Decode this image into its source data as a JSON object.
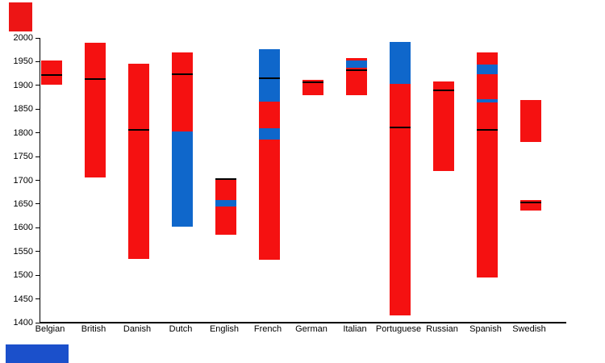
{
  "chart_data": {
    "type": "bar",
    "subtype": "floating-stacked-range-bars",
    "title": "",
    "xlabel": "",
    "ylabel": "",
    "ylim": [
      1400,
      2000
    ],
    "ytick_step": 50,
    "ytick_labels": [
      "2000",
      "1950",
      "1900",
      "1850",
      "1800",
      "1750",
      "1700",
      "1650",
      "1600",
      "1550",
      "1500",
      "1450",
      "1400"
    ],
    "grid": "off",
    "legend": "none",
    "categories": [
      "Belgian",
      "British",
      "Danish",
      "Dutch",
      "English",
      "French",
      "German",
      "Italian",
      "Portuguese",
      "Russian",
      "Spanish",
      "Swedish"
    ],
    "colors": {
      "red": "#f51111",
      "blue": "#0f67cb",
      "marker": "#000000",
      "axis": "#000000"
    },
    "bars": [
      {
        "category": "Belgian",
        "marker": 1922,
        "segments": [
          {
            "from": 1901,
            "to": 1953,
            "color": "red"
          }
        ]
      },
      {
        "category": "British",
        "marker": 1914,
        "segments": [
          {
            "from": 1706,
            "to": 1989,
            "color": "red"
          }
        ]
      },
      {
        "category": "Danish",
        "marker": 1806,
        "segments": [
          {
            "from": 1534,
            "to": 1946,
            "color": "red"
          }
        ]
      },
      {
        "category": "Dutch",
        "marker": 1924,
        "segments": [
          {
            "from": 1603,
            "to": 1802,
            "color": "blue"
          },
          {
            "from": 1802,
            "to": 1970,
            "color": "red"
          }
        ]
      },
      {
        "category": "English",
        "marker": 1703,
        "segments": [
          {
            "from": 1585,
            "to": 1644,
            "color": "red"
          },
          {
            "from": 1644,
            "to": 1658,
            "color": "blue"
          },
          {
            "from": 1658,
            "to": 1705,
            "color": "red"
          }
        ]
      },
      {
        "category": "French",
        "marker": 1915,
        "segments": [
          {
            "from": 1532,
            "to": 1785,
            "color": "red"
          },
          {
            "from": 1785,
            "to": 1809,
            "color": "blue"
          },
          {
            "from": 1809,
            "to": 1866,
            "color": "red"
          },
          {
            "from": 1866,
            "to": 1976,
            "color": "blue"
          }
        ]
      },
      {
        "category": "German",
        "marker": 1906,
        "segments": [
          {
            "from": 1880,
            "to": 1911,
            "color": "red"
          }
        ]
      },
      {
        "category": "Italian",
        "marker": 1932,
        "segments": [
          {
            "from": 1880,
            "to": 1937,
            "color": "red"
          },
          {
            "from": 1937,
            "to": 1953,
            "color": "blue"
          },
          {
            "from": 1953,
            "to": 1957,
            "color": "red"
          }
        ]
      },
      {
        "category": "Portuguese",
        "marker": 1811,
        "segments": [
          {
            "from": 1416,
            "to": 1903,
            "color": "red"
          },
          {
            "from": 1903,
            "to": 1991,
            "color": "blue"
          }
        ]
      },
      {
        "category": "Russian",
        "marker": 1890,
        "segments": [
          {
            "from": 1719,
            "to": 1909,
            "color": "red"
          }
        ]
      },
      {
        "category": "Spanish",
        "marker": 1807,
        "segments": [
          {
            "from": 1495,
            "to": 1864,
            "color": "red"
          },
          {
            "from": 1864,
            "to": 1870,
            "color": "blue"
          },
          {
            "from": 1870,
            "to": 1924,
            "color": "red"
          },
          {
            "from": 1924,
            "to": 1944,
            "color": "blue"
          },
          {
            "from": 1944,
            "to": 1969,
            "color": "red"
          }
        ]
      },
      {
        "category": "Swedish",
        "marker": 1654,
        "segments": [
          {
            "from": 1636,
            "to": 1658,
            "color": "red"
          },
          {
            "from": 1781,
            "to": 1869,
            "color": "red"
          }
        ]
      }
    ]
  },
  "decorations": {
    "top_left_mark_color": "#ed1515",
    "bottom_left_mark_color": "#1b50cb"
  }
}
